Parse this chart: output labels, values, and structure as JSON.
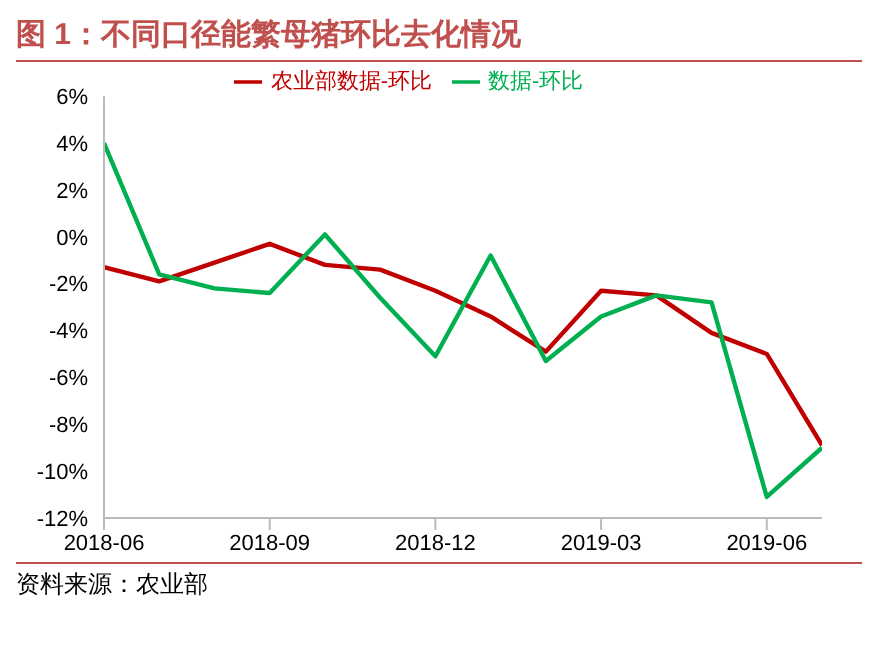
{
  "chart_data": {
    "type": "line",
    "title": "图 1：不同口径能繁母猪环比去化情况",
    "categories": [
      "2018-06",
      null,
      null,
      "2018-09",
      null,
      null,
      "2018-12",
      null,
      null,
      "2019-03",
      null,
      null,
      "2019-06",
      null
    ],
    "series": [
      {
        "name": "农业部数据-环比",
        "color": "#c00000",
        "values": [
          -1.3,
          -1.9,
          -1.1,
          -0.3,
          -1.2,
          -1.4,
          -2.3,
          -3.4,
          -4.9,
          -2.3,
          -2.5,
          -4.1,
          -5.0,
          -8.9
        ]
      },
      {
        "name": "数据-环比",
        "color": "#00b050",
        "values": [
          4.0,
          -1.6,
          -2.2,
          -2.4,
          0.1,
          -2.6,
          -5.1,
          -0.8,
          -5.3,
          -3.4,
          -2.5,
          -2.8,
          -11.1,
          -9.0
        ]
      }
    ],
    "ylim": [
      -12,
      6
    ],
    "yticks": [
      {
        "value": -12,
        "label": "-12%"
      },
      {
        "value": -10,
        "label": "-10%"
      },
      {
        "value": -8,
        "label": "-8%"
      },
      {
        "value": -6,
        "label": "-6%"
      },
      {
        "value": -4,
        "label": "-4%"
      },
      {
        "value": -2,
        "label": "-2%"
      },
      {
        "value": 0,
        "label": "0%"
      },
      {
        "value": 2,
        "label": "2%"
      },
      {
        "value": 4,
        "label": "4%"
      },
      {
        "value": 6,
        "label": "6%"
      }
    ],
    "grid": false,
    "legend": "top",
    "marker": "none",
    "line_style": "solid",
    "annotations": [
      "资料来源：农业部"
    ]
  }
}
